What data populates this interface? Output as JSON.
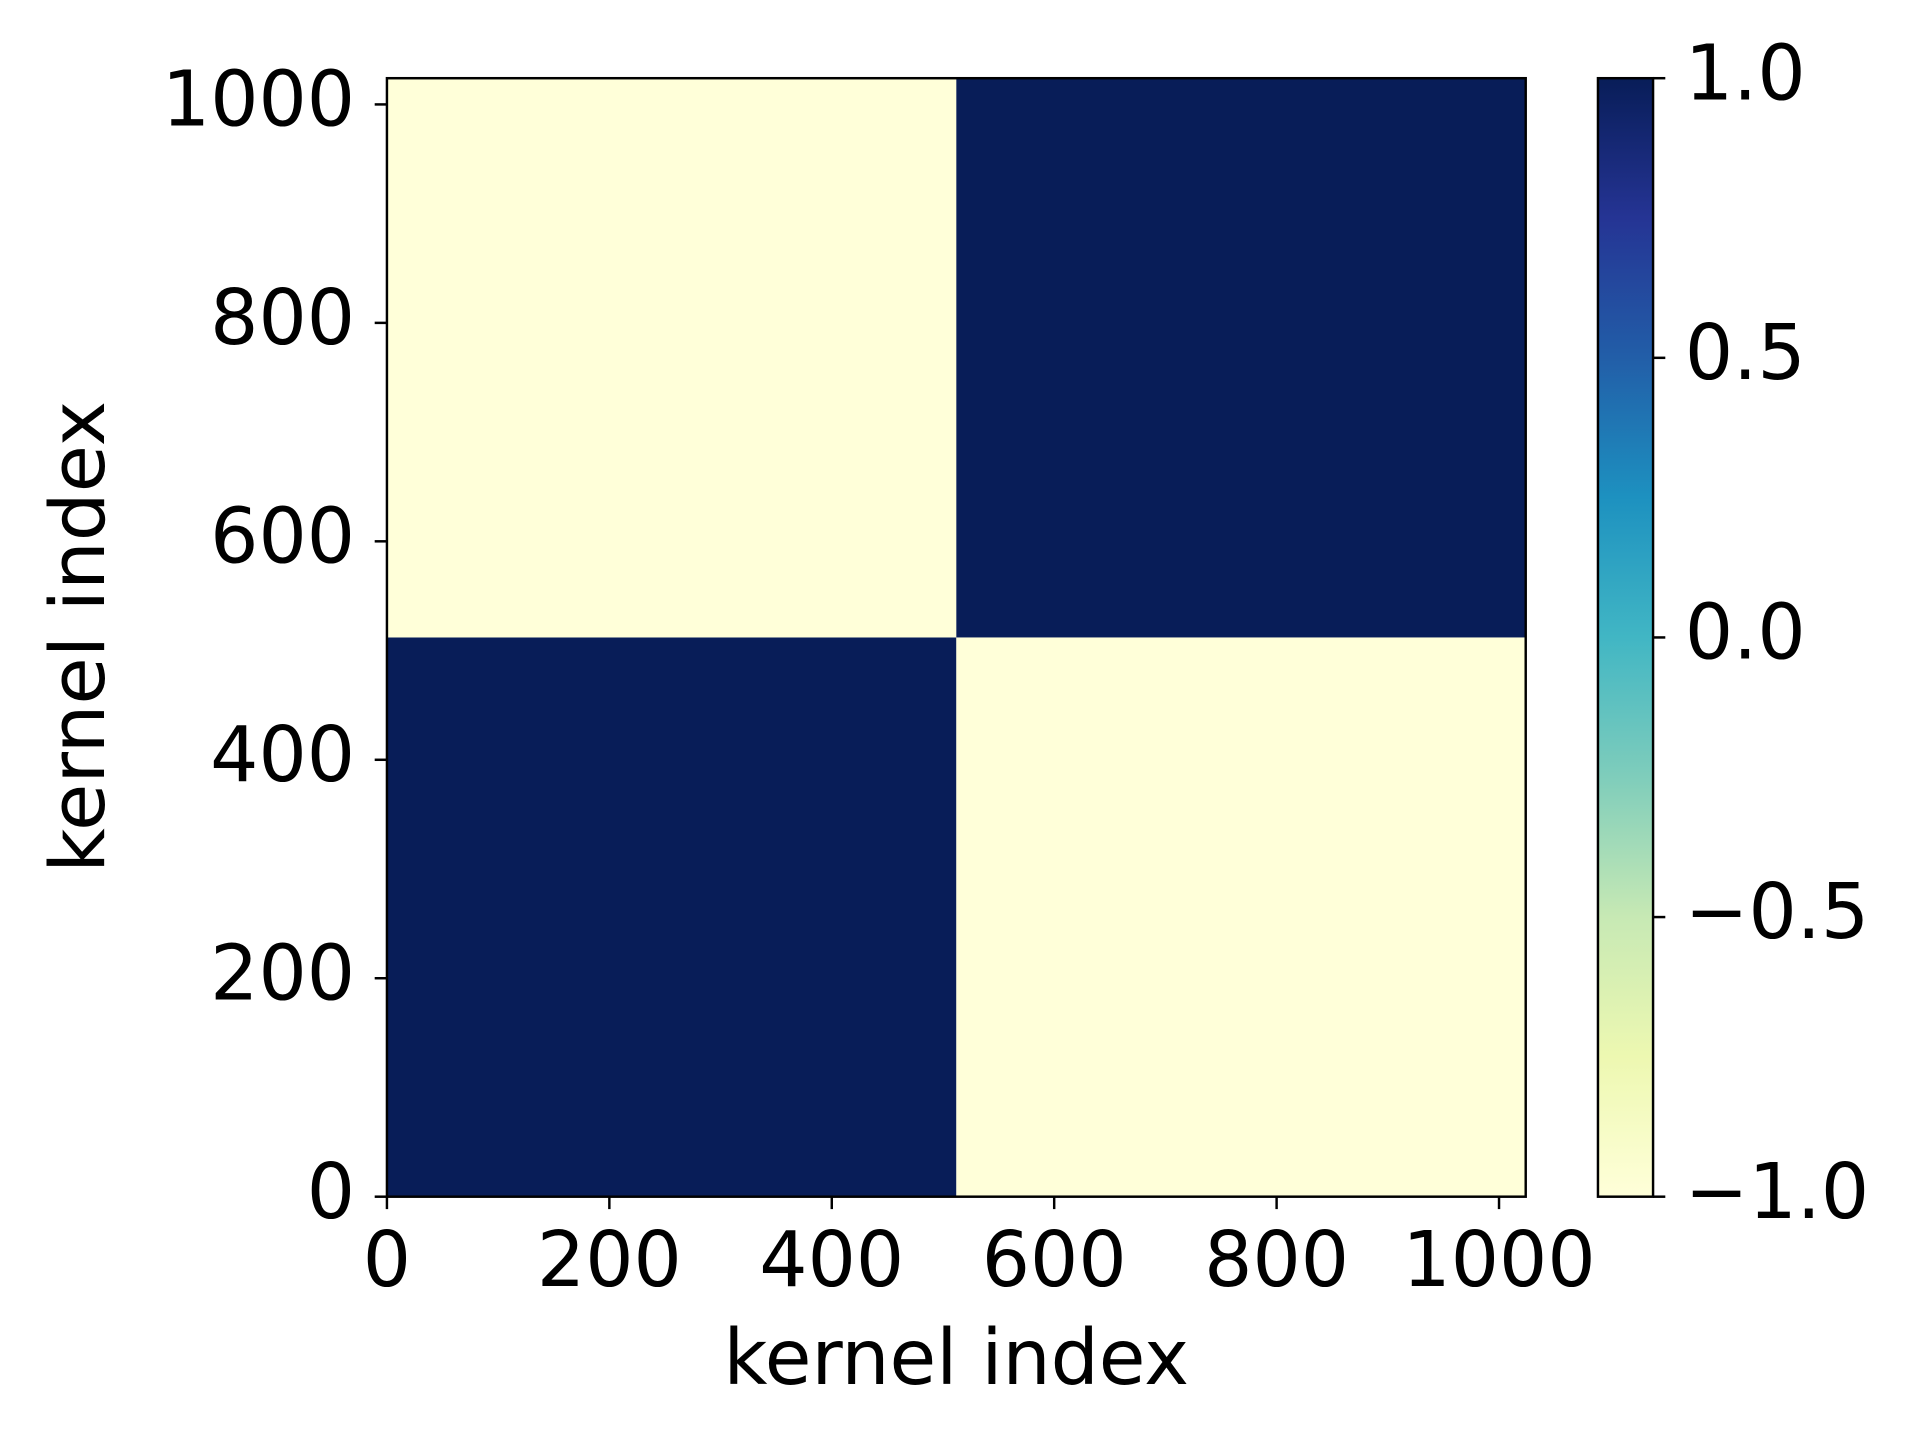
{
  "chart_data": {
    "type": "heatmap",
    "xlabel": "kernel index",
    "ylabel": "kernel index",
    "x_edges": [
      0,
      512,
      1024
    ],
    "y_edges": [
      0,
      512,
      1024
    ],
    "values": [
      [
        1,
        -1
      ],
      [
        -1,
        1
      ]
    ],
    "xlim": [
      0,
      1024
    ],
    "ylim": [
      0,
      1024
    ],
    "xticks": [
      0,
      200,
      400,
      600,
      800,
      1000
    ],
    "yticks": [
      0,
      200,
      400,
      600,
      800,
      1000
    ],
    "colormap": [
      "#ffffd9",
      "#edf8b1",
      "#c7e9b4",
      "#7fcdbb",
      "#41b6c4",
      "#1d91c0",
      "#225ea8",
      "#253494",
      "#081d58"
    ],
    "clim": [
      -1,
      1
    ],
    "cticks": [
      {
        "value": -1,
        "label": "−1.0"
      },
      {
        "value": -0.5,
        "label": "−0.5"
      },
      {
        "value": 0,
        "label": "0.0"
      },
      {
        "value": 0.5,
        "label": "0.5"
      },
      {
        "value": 1,
        "label": "1.0"
      }
    ]
  }
}
